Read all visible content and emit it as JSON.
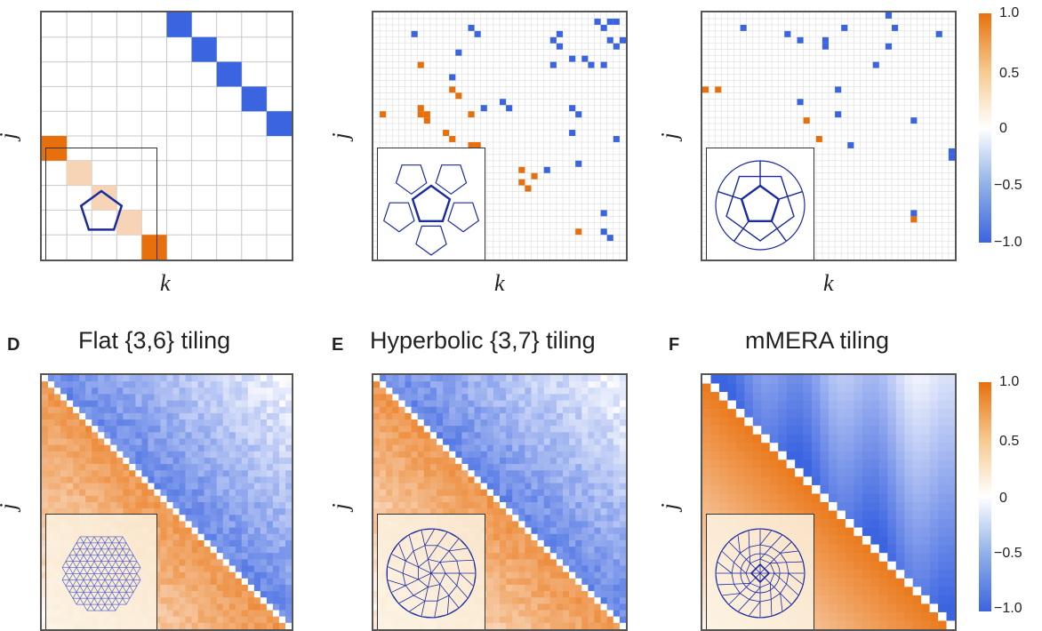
{
  "colors": {
    "positive": "#e8700c",
    "neutral": "#ffffff",
    "negative": "#3b64e0",
    "grid": "#c8c8c8",
    "inset_edge": "#1a2aa0"
  },
  "colorbar": {
    "ticks": [
      "1.0",
      "0.5",
      "0",
      "−0.5",
      "−1.0"
    ],
    "values": [
      1.0,
      0.5,
      0,
      -0.5,
      -1.0
    ]
  },
  "top_row": {
    "xlabel": "k",
    "ylabel": "j"
  },
  "bottom_row": {
    "ylabel": "j"
  },
  "panels": {
    "d": {
      "letter": "D",
      "title": "Flat {3,6} tiling"
    },
    "e": {
      "letter": "E",
      "title": "Hyperbolic {3,7} tiling"
    },
    "f": {
      "letter": "F",
      "title": "mMERA tiling"
    }
  },
  "chart_data": [
    {
      "type": "heatmap",
      "panel": "A-top",
      "grid_n": 10,
      "inset": "pentagon",
      "cells": [
        [
          0,
          5,
          -1.0
        ],
        [
          1,
          6,
          -1.0
        ],
        [
          2,
          7,
          -1.0
        ],
        [
          3,
          8,
          -1.0
        ],
        [
          4,
          9,
          -1.0
        ],
        [
          5,
          0,
          1.0
        ],
        [
          6,
          1,
          0.3
        ],
        [
          7,
          2,
          0.3
        ],
        [
          8,
          3,
          0.3
        ],
        [
          9,
          4,
          0.3
        ],
        [
          9,
          4,
          1.0
        ]
      ]
    },
    {
      "type": "heatmap",
      "panel": "B-top",
      "grid_n": 40,
      "inset": "pentagon-ring",
      "pattern": "sparse-diagonals"
    },
    {
      "type": "heatmap",
      "panel": "C-top",
      "grid_n": 40,
      "inset": "nested-pentagon",
      "pattern": "sparse-scatter"
    },
    {
      "type": "heatmap",
      "panel": "D",
      "grid_n": 60,
      "lower": "positive",
      "upper": "negative",
      "inset": "flat-triangular"
    },
    {
      "type": "heatmap",
      "panel": "E",
      "grid_n": 60,
      "lower": "positive",
      "upper": "negative",
      "inset": "hyperbolic-disk"
    },
    {
      "type": "heatmap",
      "panel": "F",
      "grid_n": 30,
      "lower": "positive",
      "upper": "negative",
      "inset": "mmera-disk"
    }
  ]
}
